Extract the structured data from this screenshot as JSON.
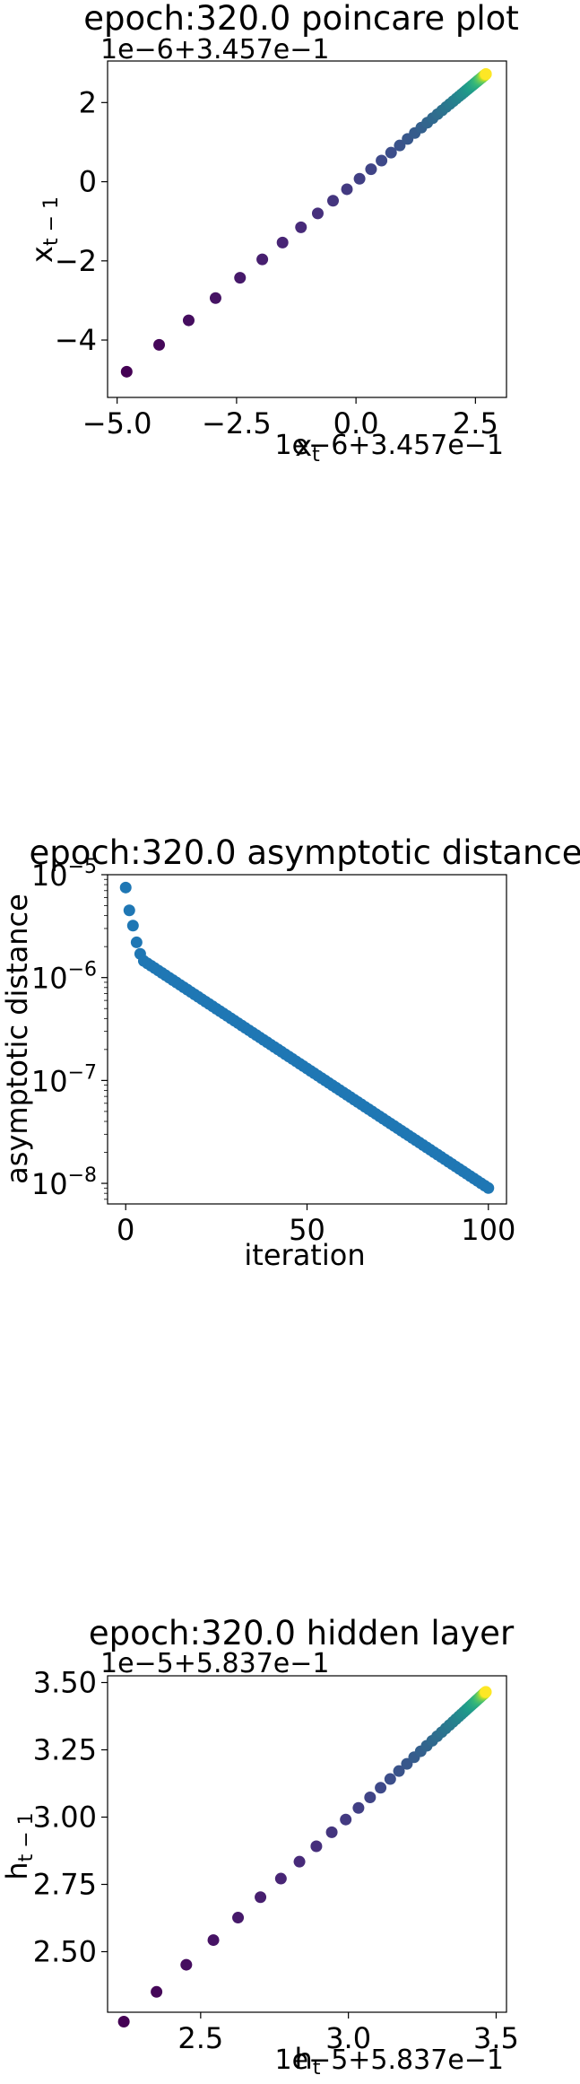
{
  "chart_data": [
    {
      "type": "scatter",
      "title": "epoch:320.0 poincare plot",
      "xlabel": "x_t",
      "ylabel": "x_{t-1}",
      "x_offset_text": "1e−6+3.457e−1",
      "y_offset_text": "1e−6+3.457e−1",
      "xlim": [
        -5.2,
        3.15
      ],
      "ylim": [
        -5.45,
        3.05
      ],
      "xticks": [
        -5.0,
        -2.5,
        0.0,
        2.5
      ],
      "xtick_labels": [
        "−5.0",
        "−2.5",
        "0.0",
        "2.5"
      ],
      "yticks": [
        -4,
        -2,
        0,
        2
      ],
      "ytick_labels": [
        "−4",
        "−2",
        "0",
        "2"
      ],
      "colormap": "viridis",
      "n_points": 60,
      "x_range": [
        -4.8,
        2.75
      ],
      "points_pattern": "geometric convergence along y=x toward (2.75, 2.75)"
    },
    {
      "type": "scatter",
      "title": "epoch:320.0 asymptotic distance",
      "xlabel": "iteration",
      "ylabel": "asymptotic distance",
      "yscale": "log",
      "xlim": [
        -5,
        105
      ],
      "ylim_exp": [
        -8.2,
        -5.0
      ],
      "xticks": [
        0,
        50,
        100
      ],
      "xtick_labels": [
        "0",
        "50",
        "100"
      ],
      "yticks_exp": [
        -8,
        -7,
        -6,
        -5
      ],
      "color": "#1f77b4",
      "iterations": [
        0,
        100
      ],
      "first_values": [
        7.5e-06,
        4.5e-06,
        3.2e-06,
        2.2e-06,
        1.7e-06,
        1.45e-06
      ],
      "decay_to": 9e-09
    },
    {
      "type": "scatter",
      "title": "epoch:320.0 hidden layer",
      "xlabel": "h_t",
      "ylabel": "h_{t-1}",
      "x_offset_text": "1e−5+5.837e−1",
      "y_offset_text": "1e−5+5.837e−1",
      "xlim": [
        2.185,
        3.535
      ],
      "ylim": [
        2.275,
        3.525
      ],
      "xticks": [
        2.5,
        3.0,
        3.5
      ],
      "xtick_labels": [
        "2.5",
        "3.0",
        "3.5"
      ],
      "yticks": [
        2.5,
        2.75,
        3.0,
        3.25,
        3.5
      ],
      "ytick_labels": [
        "2.50",
        "2.75",
        "3.00",
        "3.25",
        "3.50"
      ],
      "colormap": "viridis",
      "n_points": 60,
      "x_range": [
        2.24,
        3.47
      ],
      "points_pattern": "geometric convergence along diagonal toward (3.47, 3.47)"
    }
  ]
}
